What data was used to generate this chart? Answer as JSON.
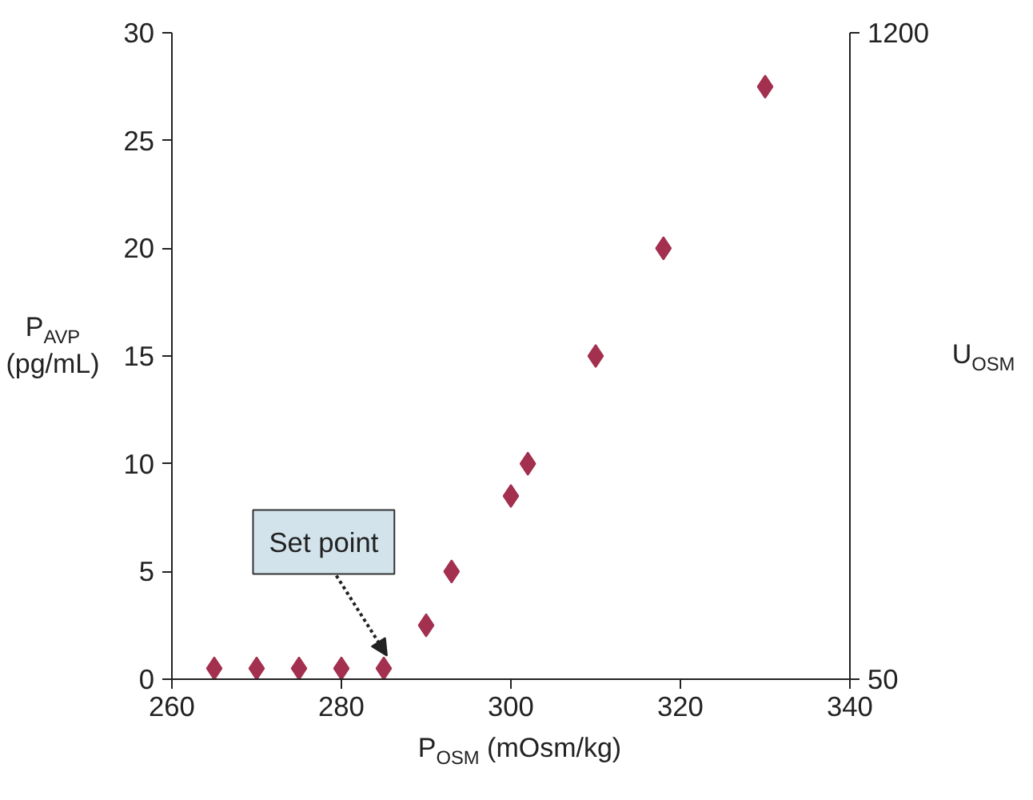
{
  "chart_data": {
    "type": "scatter",
    "xlabel": "P$_{OSM}$ (mOsm/kg)",
    "ylabel": "P$_{AVP}$\n(pg/mL)",
    "y2label": "U$_{OSM}$",
    "x": [
      265,
      270,
      275,
      280,
      285,
      290,
      293,
      300,
      302,
      310,
      318,
      330
    ],
    "series": [
      {
        "color": "#a3304f",
        "values": [
          0.5,
          0.5,
          0.5,
          0.5,
          0.5,
          2.5,
          5,
          8.5,
          10,
          15,
          20,
          27.5
        ]
      }
    ],
    "marker": "diamond",
    "xlim": [
      260,
      340
    ],
    "xticks": [
      260,
      280,
      300,
      320,
      340
    ],
    "ylim": [
      0,
      30
    ],
    "yticks": [
      0,
      5,
      10,
      15,
      20,
      25,
      30
    ],
    "y2lim": [
      50,
      1200
    ],
    "y2ticks": [
      50,
      1200
    ],
    "grid": false,
    "annotations": [
      {
        "text": "Set point",
        "x": 285,
        "y": 0.5
      }
    ]
  }
}
